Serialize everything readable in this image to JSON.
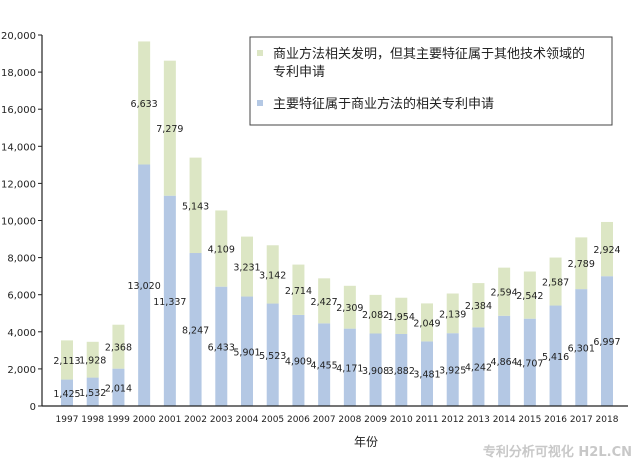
{
  "chart_data": {
    "type": "bar",
    "stacked": true,
    "title": "",
    "xlabel": "年份",
    "ylabel": "",
    "ylim": [
      0,
      20000
    ],
    "yticks": [
      "0",
      "2,000",
      "4,000",
      "6,000",
      "8,000",
      "10,000",
      "12,000",
      "14,000",
      "16,000",
      "18,000",
      "20,000"
    ],
    "categories": [
      "1997",
      "1998",
      "1999",
      "2000",
      "2001",
      "2002",
      "2003",
      "2004",
      "2005",
      "2006",
      "2007",
      "2008",
      "2009",
      "2010",
      "2011",
      "2012",
      "2013",
      "2014",
      "2015",
      "2016",
      "2017",
      "2018"
    ],
    "series": [
      {
        "name": "主要特征属于商业方法的相关专利申请",
        "color": "#b4c8e4",
        "values": [
          1425,
          1532,
          2014,
          13020,
          11337,
          8247,
          6433,
          5901,
          5523,
          4909,
          4455,
          4171,
          3908,
          3882,
          3481,
          3925,
          4242,
          4864,
          4707,
          5416,
          6301,
          6997
        ],
        "labels": [
          "1,425",
          "1,532",
          "2,014",
          "13,020",
          "11,337",
          "8,247",
          "6,433",
          "5,901",
          "5,523",
          "4,909",
          "4,455",
          "4,171",
          "3,908",
          "3,882",
          "3,481",
          "3,925",
          "4,242",
          "4,864",
          "4,707",
          "5,416",
          "6,301",
          "6,997"
        ]
      },
      {
        "name": "商业方法相关发明，但其主要特征属于其他技术领域的专利申请",
        "color": "#dce6c4",
        "values": [
          2113,
          1928,
          2368,
          6633,
          7279,
          5143,
          4109,
          3231,
          3142,
          2714,
          2427,
          2309,
          2082,
          1954,
          2049,
          2139,
          2384,
          2594,
          2542,
          2587,
          2789,
          2924
        ],
        "labels": [
          "2,113",
          "1,928",
          "2,368",
          "6,633",
          "7,279",
          "5,143",
          "4,109",
          "3,231",
          "3,142",
          "2,714",
          "2,427",
          "2,309",
          "2,082",
          "1,954",
          "2,049",
          "2,139",
          "2,384",
          "2,594",
          "2,542",
          "2,587",
          "2,789",
          "2,924"
        ]
      }
    ],
    "legend": {
      "placement": "top-right",
      "items": [
        {
          "line1": "商业方法相关发明，但其主要特征属于其他技术领域的",
          "line2": "专利申请",
          "color": "#dce6c4"
        },
        {
          "line1": "主要特征属于商业方法的相关专利申请",
          "color": "#b4c8e4"
        }
      ]
    },
    "grid": false
  },
  "watermark": "专利分析可视化 H2L.CN"
}
